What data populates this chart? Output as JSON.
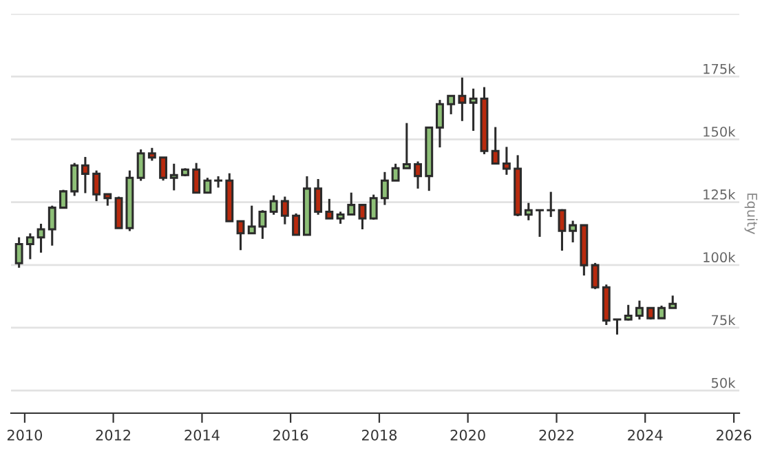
{
  "chart_data": {
    "type": "candlestick",
    "ylabel": "Equity",
    "x": [
      "2009-11",
      "2010-02",
      "2010-05",
      "2010-08",
      "2010-11",
      "2011-02",
      "2011-05",
      "2011-08",
      "2011-11",
      "2012-02",
      "2012-05",
      "2012-08",
      "2012-11",
      "2013-02",
      "2013-05",
      "2013-08",
      "2013-11",
      "2014-02",
      "2014-05",
      "2014-08",
      "2014-11",
      "2015-02",
      "2015-05",
      "2015-08",
      "2015-11",
      "2016-02",
      "2016-05",
      "2016-08",
      "2016-11",
      "2017-02",
      "2017-05",
      "2017-08",
      "2017-11",
      "2018-02",
      "2018-05",
      "2018-08",
      "2018-11",
      "2019-02",
      "2019-05",
      "2019-08",
      "2019-11",
      "2020-02",
      "2020-05",
      "2020-08",
      "2020-11",
      "2021-02",
      "2021-05",
      "2021-08",
      "2021-11",
      "2022-02",
      "2022-05",
      "2022-08",
      "2022-11",
      "2023-02",
      "2023-05",
      "2023-08",
      "2023-11",
      "2024-02",
      "2024-05",
      "2024-08"
    ],
    "ohlc": [
      [
        100700,
        111000,
        98900,
        108300
      ],
      [
        108300,
        112600,
        102300,
        111000
      ],
      [
        111000,
        116400,
        104900,
        114200
      ],
      [
        114200,
        123600,
        107700,
        122800
      ],
      [
        122800,
        129900,
        122800,
        129300
      ],
      [
        129300,
        140600,
        127500,
        139600
      ],
      [
        139600,
        143000,
        128600,
        136300
      ],
      [
        136300,
        137600,
        125400,
        128100
      ],
      [
        128200,
        128200,
        123600,
        126600
      ],
      [
        126600,
        127200,
        114700,
        114700
      ],
      [
        114700,
        137600,
        113500,
        134700
      ],
      [
        134700,
        146000,
        133500,
        144400
      ],
      [
        144400,
        146600,
        141500,
        142800
      ],
      [
        142800,
        142800,
        133600,
        134700
      ],
      [
        134700,
        140300,
        129700,
        135800
      ],
      [
        135800,
        138500,
        135300,
        138000
      ],
      [
        138000,
        140600,
        128800,
        128800
      ],
      [
        128800,
        134700,
        128800,
        133600
      ],
      [
        133600,
        135300,
        130800,
        133600
      ],
      [
        133600,
        136500,
        117400,
        117400
      ],
      [
        117400,
        117400,
        105900,
        112600
      ],
      [
        112600,
        123600,
        112600,
        115300
      ],
      [
        115300,
        121800,
        110400,
        121200
      ],
      [
        121200,
        127700,
        120000,
        125400
      ],
      [
        125400,
        127200,
        116200,
        119600
      ],
      [
        119600,
        120500,
        112000,
        112000
      ],
      [
        112000,
        135300,
        112000,
        130400
      ],
      [
        130400,
        134200,
        120000,
        121200
      ],
      [
        121200,
        126300,
        118500,
        118500
      ],
      [
        118500,
        121200,
        116400,
        120100
      ],
      [
        120100,
        128800,
        120100,
        123900
      ],
      [
        123900,
        123900,
        114200,
        118500
      ],
      [
        118500,
        128000,
        118000,
        126600
      ],
      [
        126600,
        137000,
        123900,
        133600
      ],
      [
        133600,
        140300,
        133600,
        138500
      ],
      [
        138500,
        156500,
        138500,
        140100
      ],
      [
        140100,
        141200,
        130400,
        135400
      ],
      [
        135400,
        155000,
        129500,
        154700
      ],
      [
        154700,
        165700,
        146800,
        164000
      ],
      [
        164000,
        167300,
        160000,
        167300
      ],
      [
        167300,
        174600,
        157300,
        164600
      ],
      [
        164600,
        170200,
        153400,
        166200
      ],
      [
        166200,
        170800,
        144100,
        145400
      ],
      [
        145400,
        154900,
        140400,
        140400
      ],
      [
        140400,
        147000,
        135900,
        138300
      ],
      [
        138300,
        143700,
        119400,
        120000
      ],
      [
        120000,
        124700,
        117800,
        121800
      ],
      [
        121800,
        121800,
        111200,
        121800
      ],
      [
        121800,
        129100,
        119100,
        121800
      ],
      [
        121800,
        122200,
        105700,
        113600
      ],
      [
        113600,
        117600,
        109000,
        115800
      ],
      [
        115800,
        115800,
        95800,
        99900
      ],
      [
        99900,
        100800,
        90400,
        91100
      ],
      [
        91100,
        92200,
        76100,
        77900
      ],
      [
        78300,
        78300,
        72300,
        78300
      ],
      [
        78300,
        84100,
        77900,
        79800
      ],
      [
        79800,
        85800,
        78300,
        82900
      ],
      [
        82900,
        82900,
        78300,
        78800
      ],
      [
        78800,
        83800,
        78800,
        82900
      ],
      [
        82900,
        87800,
        82900,
        84500
      ]
    ],
    "colors": [
      "#8dbf77",
      "#8dbf77",
      "#8dbf77",
      "#8dbf77",
      "#8dbf77",
      "#8dbf77",
      "#b82a0e",
      "#b82a0e",
      "#b82a0e",
      "#b82a0e",
      "#8dbf77",
      "#8dbf77",
      "#b82a0e",
      "#b82a0e",
      "#8dbf77",
      "#8dbf77",
      "#b82a0e",
      "#8dbf77",
      "#2b2b2b",
      "#b82a0e",
      "#b82a0e",
      "#8dbf77",
      "#8dbf77",
      "#8dbf77",
      "#b82a0e",
      "#b82a0e",
      "#8dbf77",
      "#b82a0e",
      "#b82a0e",
      "#8dbf77",
      "#8dbf77",
      "#b82a0e",
      "#8dbf77",
      "#8dbf77",
      "#8dbf77",
      "#8dbf77",
      "#b82a0e",
      "#8dbf77",
      "#8dbf77",
      "#8dbf77",
      "#b82a0e",
      "#8dbf77",
      "#b82a0e",
      "#b82a0e",
      "#b82a0e",
      "#b82a0e",
      "#8dbf77",
      "#2b2b2b",
      "#2b2b2b",
      "#b82a0e",
      "#8dbf77",
      "#b82a0e",
      "#b82a0e",
      "#b82a0e",
      "#2b2b2b",
      "#8dbf77",
      "#8dbf77",
      "#b82a0e",
      "#8dbf77",
      "#8dbf77"
    ],
    "xlim": [
      "2009-09-10",
      "2026-02-15"
    ],
    "xticks": [
      {
        "value": "2010-01-01",
        "label": "2010"
      },
      {
        "value": "2012-01-01",
        "label": "2012"
      },
      {
        "value": "2014-01-01",
        "label": "2014"
      },
      {
        "value": "2016-01-01",
        "label": "2016"
      },
      {
        "value": "2018-01-01",
        "label": "2018"
      },
      {
        "value": "2020-01-01",
        "label": "2020"
      },
      {
        "value": "2022-01-01",
        "label": "2022"
      },
      {
        "value": "2024-01-01",
        "label": "2024"
      },
      {
        "value": "2026-01-01",
        "label": "2026"
      }
    ],
    "ylim": [
      41000,
      200000
    ],
    "yticks": [
      {
        "value": 50000,
        "label": "50k"
      },
      {
        "value": 75000,
        "label": "75k"
      },
      {
        "value": 100000,
        "label": "100k"
      },
      {
        "value": 125000,
        "label": "125k"
      },
      {
        "value": 150000,
        "label": "150k"
      },
      {
        "value": 175000,
        "label": "175k"
      },
      {
        "value": 200000,
        "label": null
      }
    ],
    "grid": "y",
    "legend": false
  }
}
